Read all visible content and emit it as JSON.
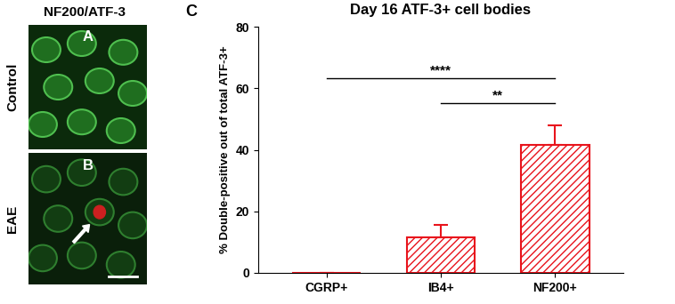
{
  "chart_data": {
    "type": "bar",
    "title": "Day 16 ATF-3+ cell bodies",
    "y_label": "% Double-positive out of total ATF-3+",
    "categories": [
      "CGRP+",
      "IB4+",
      "NF200+"
    ],
    "values": [
      0,
      11.5,
      41.5
    ],
    "error": [
      0,
      4,
      6.5
    ],
    "color": "#e8141c",
    "ylim": [
      0,
      80
    ],
    "yticks": [
      0,
      20,
      40,
      60,
      80
    ],
    "annotations": [
      {
        "text": "****",
        "from": "CGRP+",
        "to": "NF200+"
      },
      {
        "text": "**",
        "from": "IB4+",
        "to": "NF200+"
      }
    ],
    "grid": false
  },
  "figure": {
    "image_header": "NF200/ATF-3",
    "chart_panel": "C",
    "image_panels": [
      {
        "letter": "A",
        "row_label": "Control"
      },
      {
        "letter": "B",
        "row_label": "EAE"
      }
    ]
  }
}
